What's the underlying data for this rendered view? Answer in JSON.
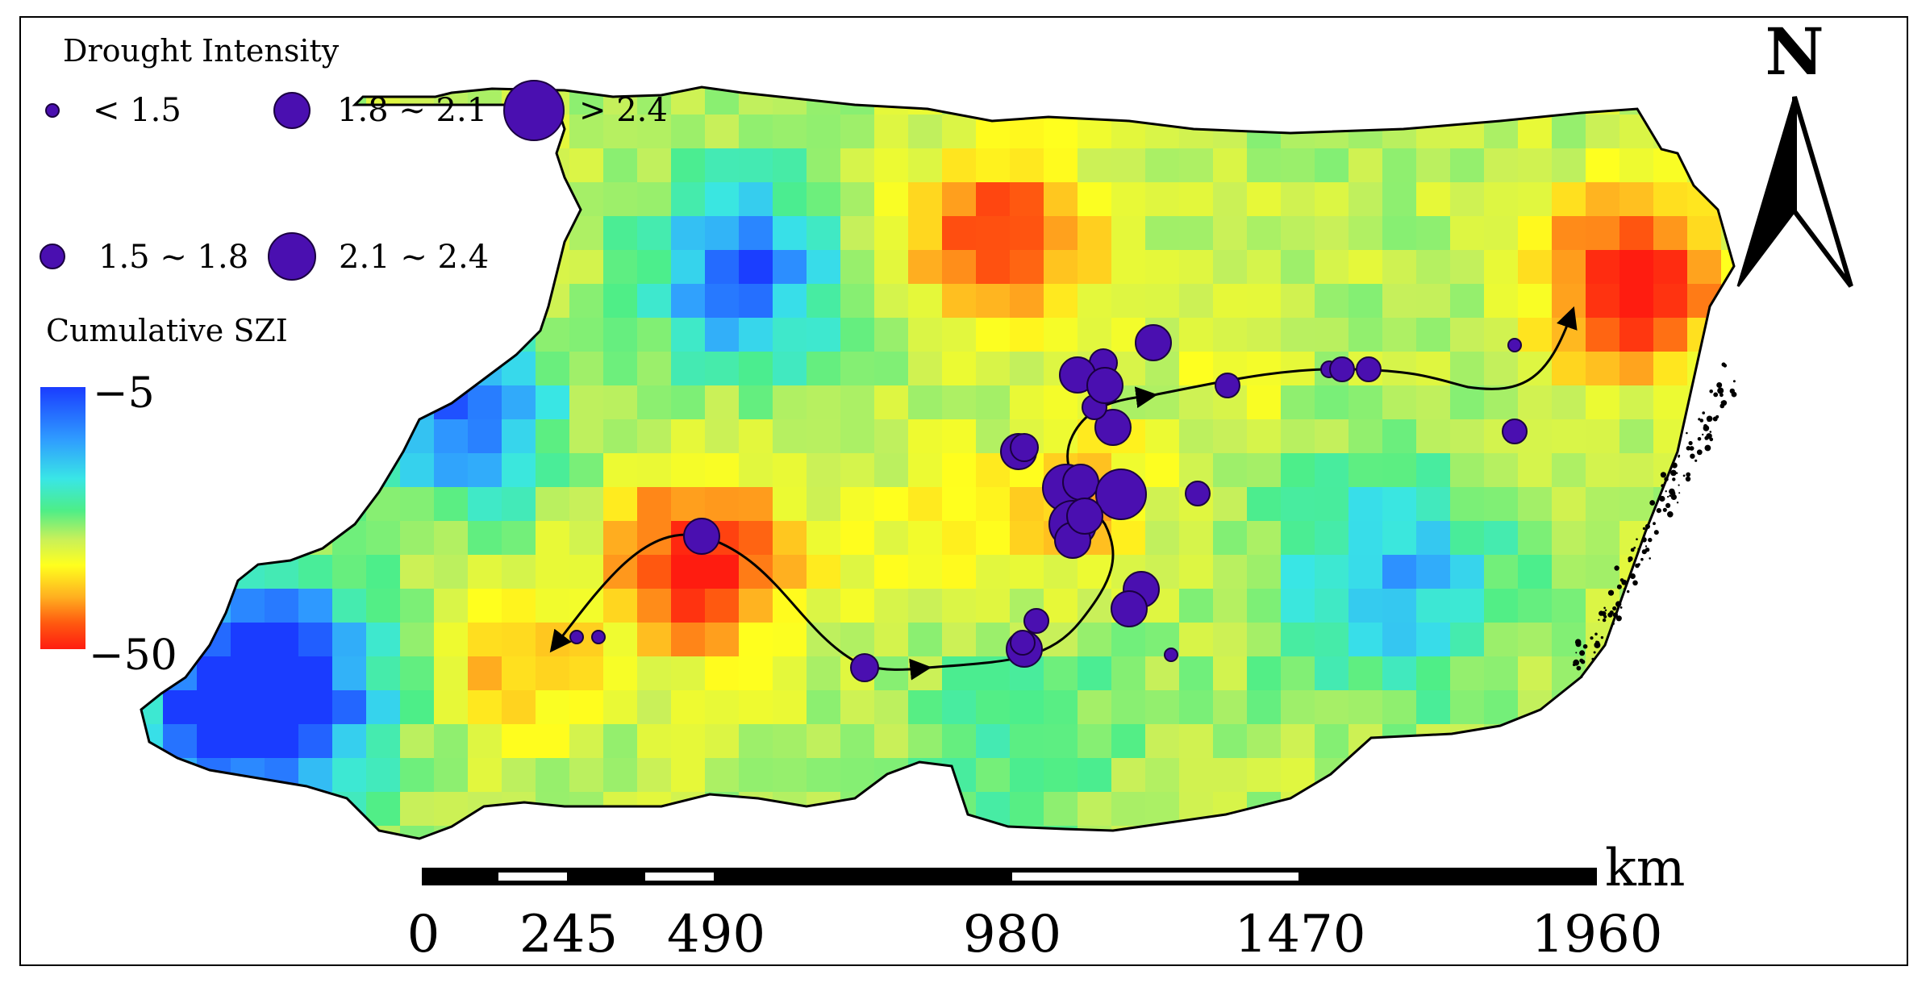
{
  "legend": {
    "intensity_title": "Drought Intensity",
    "classes": [
      "< 1.5",
      "1.5 ~ 1.8",
      "1.8 ~ 2.1",
      "2.1 ~ 2.4",
      "> 2.4"
    ],
    "szi_title": "Cumulative SZI",
    "szi_max_label": "−5",
    "szi_min_label": "−50"
  },
  "north_label": "N",
  "scale_bar": {
    "unit": "km",
    "ticks": [
      "0",
      "245",
      "490",
      "980",
      "1470",
      "1960"
    ]
  },
  "colors": {
    "marker_fill": "#4a0fb0",
    "marker_stroke": "#1a0040",
    "colormap": [
      "#1a3cff",
      "#2f9cff",
      "#39e6e6",
      "#4dee88",
      "#c8f05a",
      "#ffff1e",
      "#ffb020",
      "#ff5a10",
      "#ff1c10"
    ]
  }
}
